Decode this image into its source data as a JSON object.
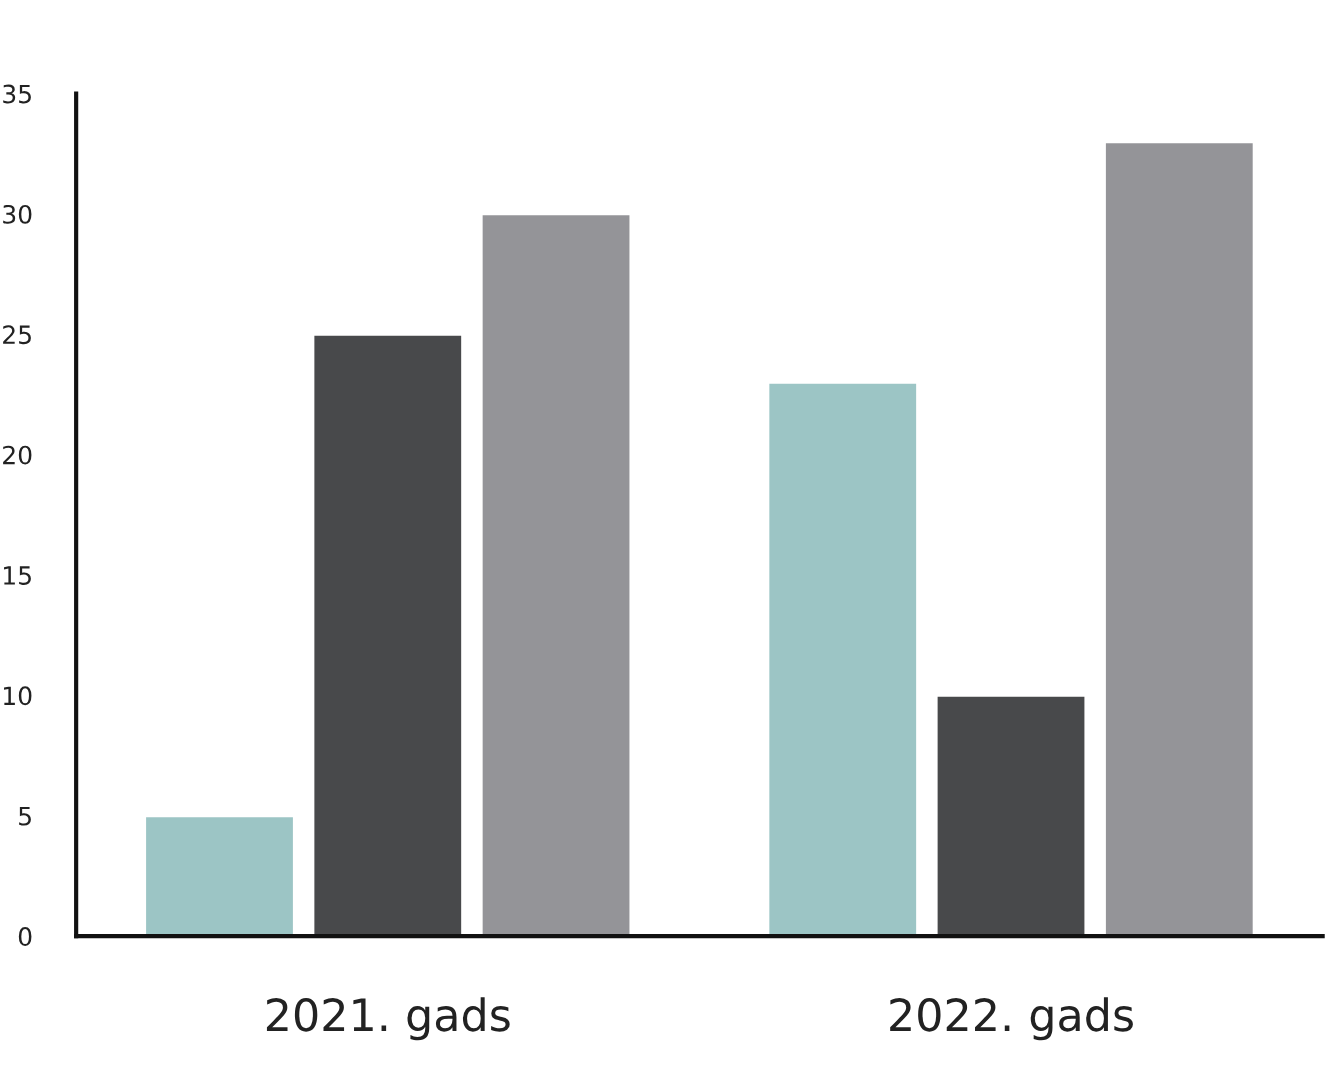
{
  "chart_data": {
    "type": "bar",
    "categories": [
      "2021. gads",
      "2022. gads"
    ],
    "series": [
      {
        "color": "#9cc5c5",
        "values": [
          5,
          23
        ]
      },
      {
        "color": "#48494b",
        "values": [
          25,
          10
        ]
      },
      {
        "color": "#949498",
        "values": [
          30,
          33
        ]
      }
    ],
    "ylim": [
      0,
      35
    ],
    "yticks": [
      0,
      5,
      10,
      15,
      20,
      25,
      30,
      35
    ],
    "grid": false
  }
}
